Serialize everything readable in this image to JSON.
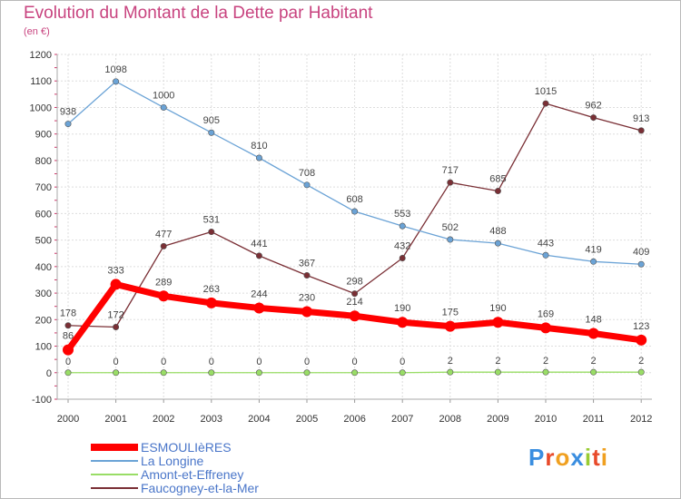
{
  "chart_data": {
    "type": "line",
    "title": "Evolution du Montant de la Dette par Habitant",
    "subtitle": "(en €)",
    "x": [
      "2000",
      "2001",
      "2002",
      "2003",
      "2004",
      "2005",
      "2006",
      "2007",
      "2008",
      "2009",
      "2010",
      "2011",
      "2012"
    ],
    "ylim": [
      -100,
      1200
    ],
    "yticks": [
      -100,
      0,
      100,
      200,
      300,
      400,
      500,
      600,
      700,
      800,
      900,
      1000,
      1100,
      1200
    ],
    "grid": true,
    "legend_position": "bottom-left",
    "series": [
      {
        "name": "ESMOULIèRES",
        "color": "#ff0000",
        "values": [
          86,
          333,
          289,
          263,
          244,
          230,
          214,
          190,
          175,
          190,
          169,
          148,
          123
        ]
      },
      {
        "name": "La Longine",
        "color": "#6ba3d6",
        "values": [
          938,
          1098,
          1000,
          905,
          810,
          708,
          608,
          553,
          502,
          488,
          443,
          419,
          409
        ]
      },
      {
        "name": "Amont-et-Effreney",
        "color": "#99dd66",
        "values": [
          0,
          0,
          0,
          0,
          0,
          0,
          0,
          0,
          2,
          2,
          2,
          2,
          2
        ]
      },
      {
        "name": "Faucogney-et-la-Mer",
        "color": "#7a2f35",
        "values": [
          178,
          172,
          477,
          531,
          441,
          367,
          298,
          432,
          717,
          685,
          1015,
          962,
          913
        ]
      }
    ]
  },
  "logo": {
    "letters": [
      "P",
      "r",
      "o",
      "x",
      "i",
      "t",
      "i"
    ],
    "colors": [
      "#3a8ee0",
      "#e84a2a",
      "#f0a020",
      "#3a8ee0",
      "#99cc33",
      "#e84a2a",
      "#f0a020"
    ]
  }
}
